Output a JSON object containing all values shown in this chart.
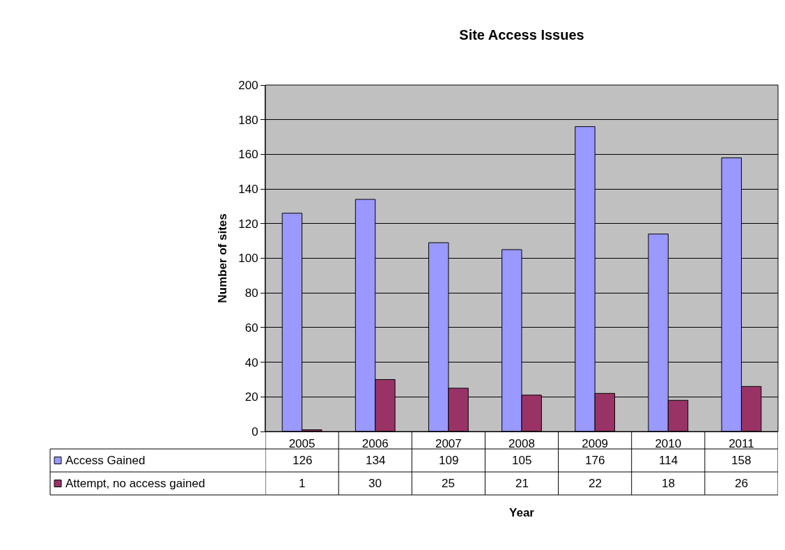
{
  "chart_data": {
    "type": "bar",
    "title": "Site Access Issues",
    "xlabel": "Year",
    "ylabel": "Number of sites",
    "categories": [
      "2005",
      "2006",
      "2007",
      "2008",
      "2009",
      "2010",
      "2011"
    ],
    "series": [
      {
        "name": "Access Gained",
        "color": "#9999ff",
        "values": [
          126,
          134,
          109,
          105,
          176,
          114,
          158
        ]
      },
      {
        "name": "Attempt, no access gained",
        "color": "#993366",
        "values": [
          1,
          30,
          25,
          21,
          22,
          18,
          26
        ]
      }
    ],
    "ylim": [
      0,
      200
    ],
    "yticks": [
      0,
      20,
      40,
      60,
      80,
      100,
      120,
      140,
      160,
      180,
      200
    ],
    "grid": "y",
    "legend": "bottom left",
    "data_labels": true
  }
}
